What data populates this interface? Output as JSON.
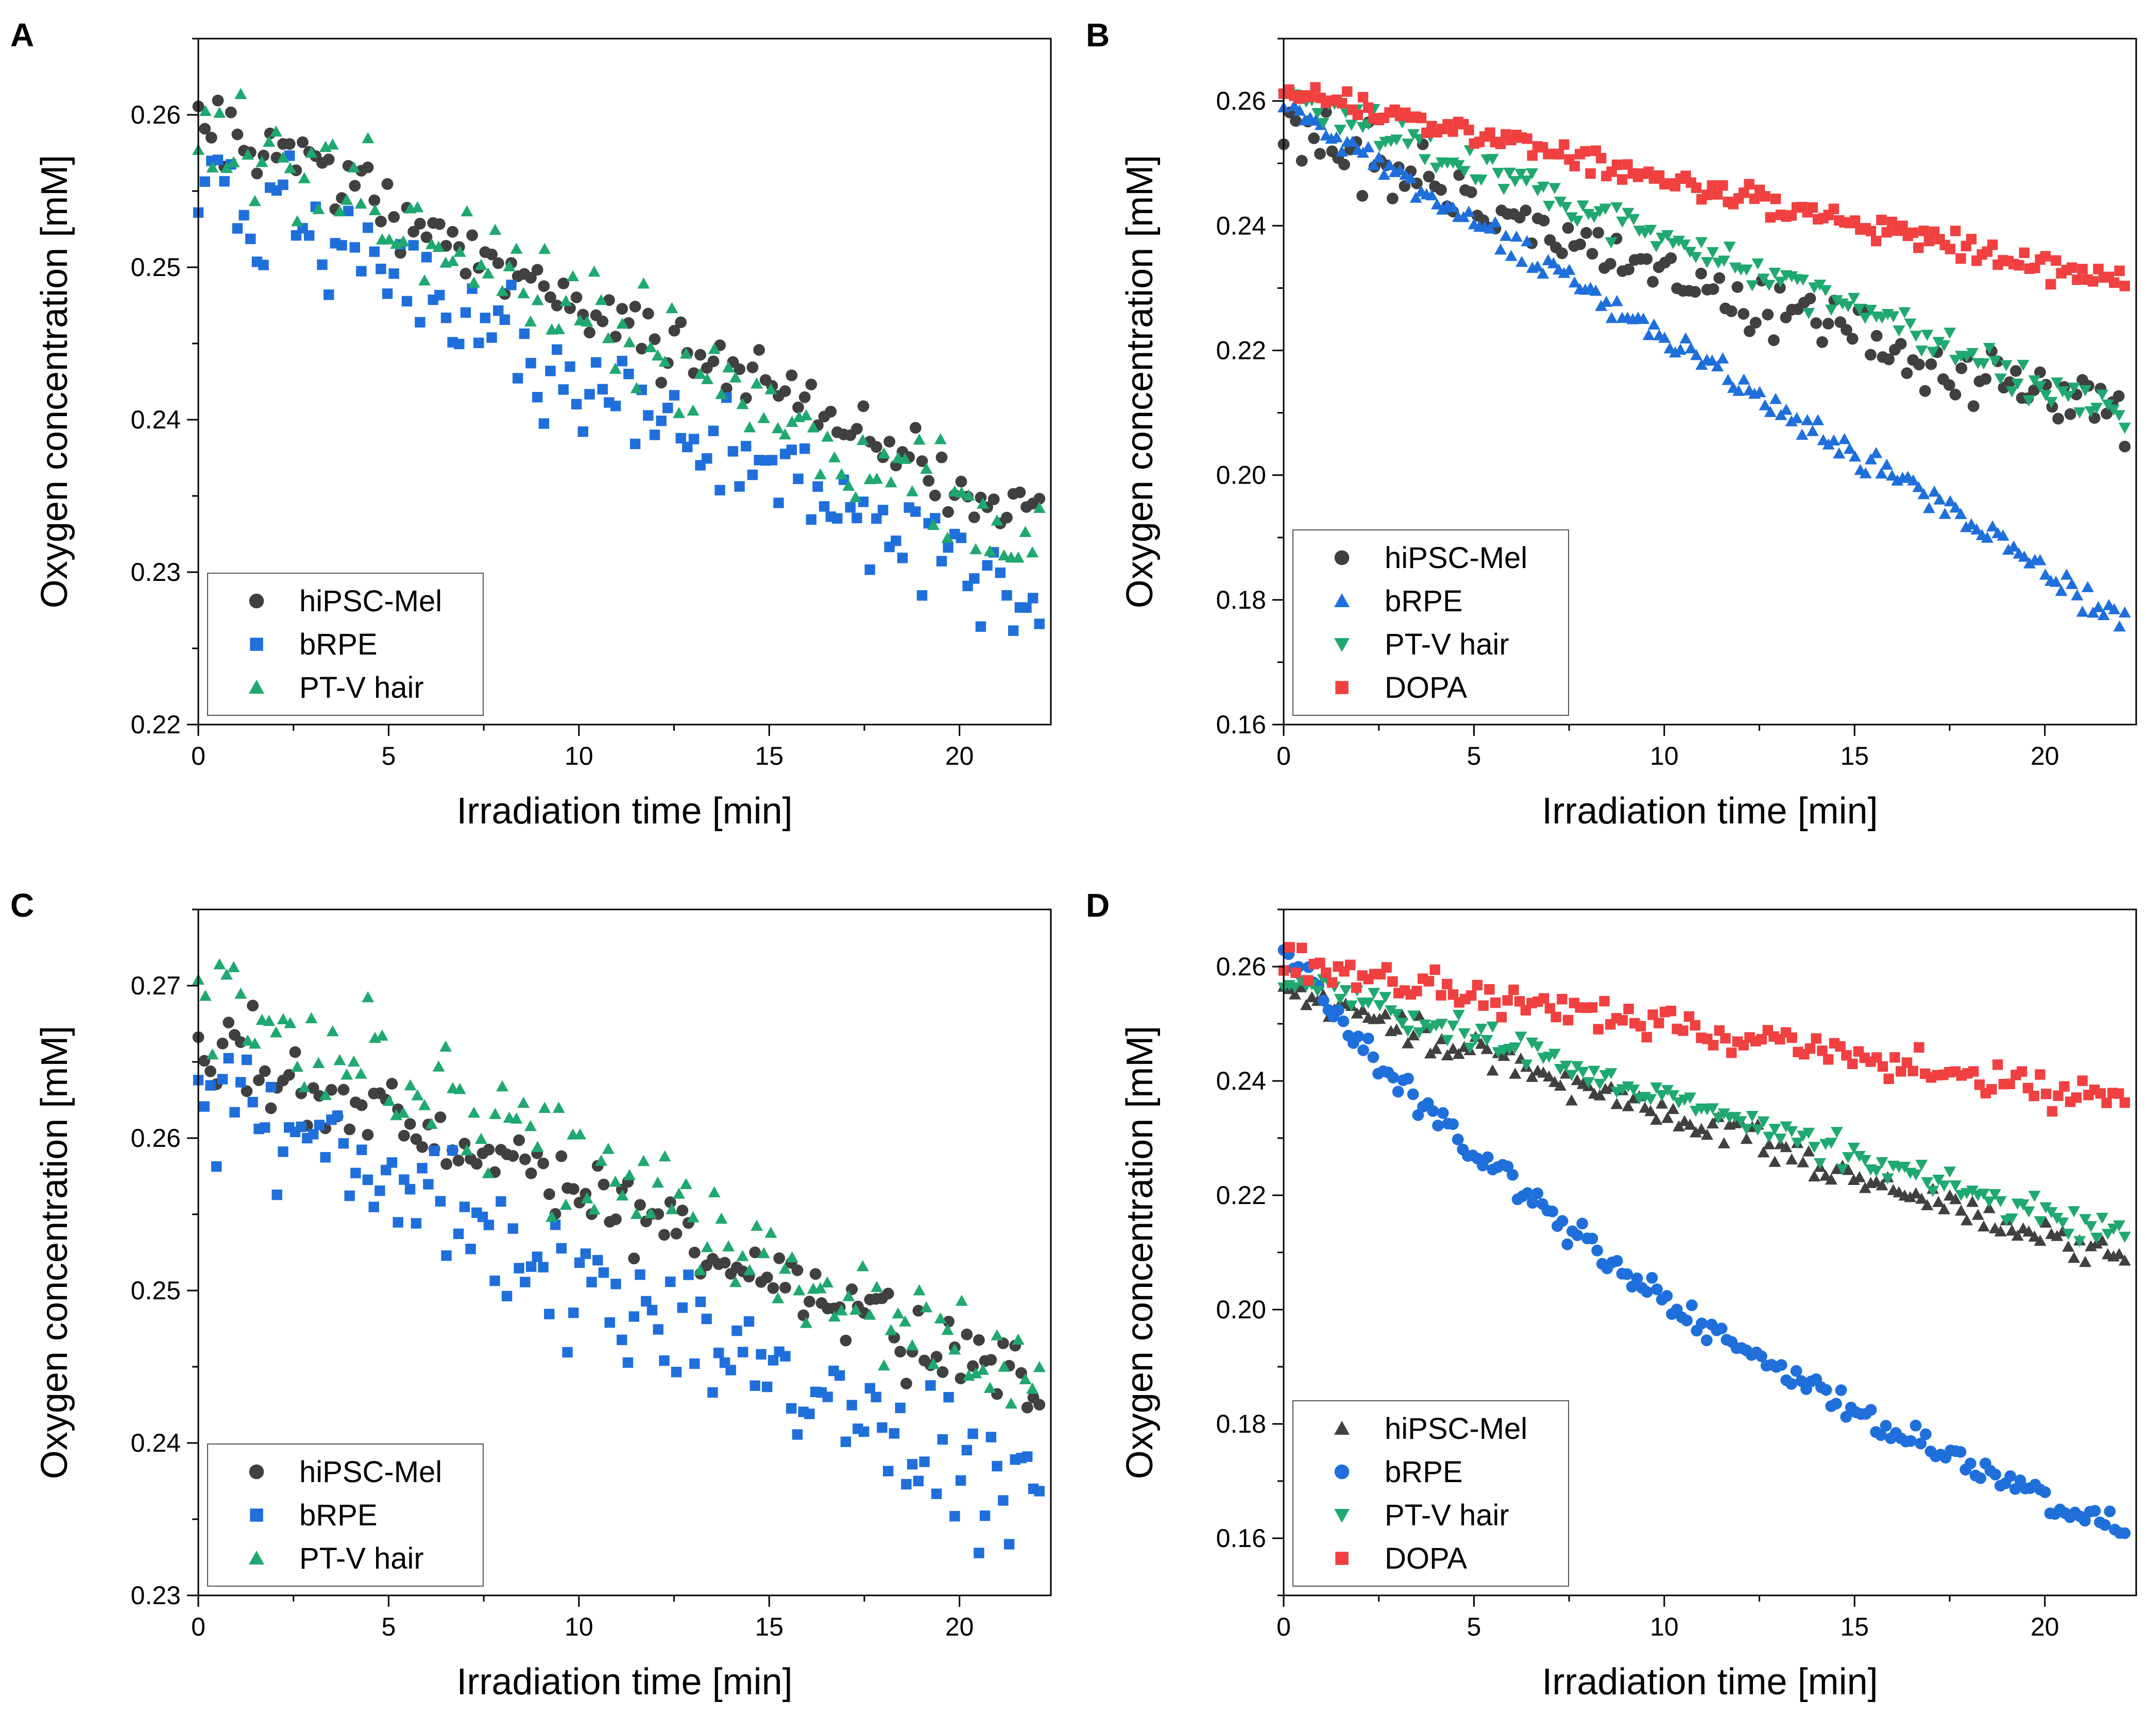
{
  "chart_data": [
    {
      "panel": "A",
      "type": "scatter",
      "xlabel": "Irradiation time [min]",
      "ylabel": "Oxygen concentration [mM]",
      "xlim": [
        0,
        22.4
      ],
      "ylim": [
        0.22,
        0.265
      ],
      "xticks": [
        0,
        5,
        10,
        15,
        20
      ],
      "xtick_labels": [
        "0",
        "5",
        "10",
        "15",
        "20"
      ],
      "yticks": [
        0.22,
        0.23,
        0.24,
        0.25,
        0.26
      ],
      "ytick_labels": [
        "0.22",
        "0.23",
        "0.24",
        "0.25",
        "0.26"
      ],
      "legend_position": "bottom-left",
      "series": [
        {
          "name": "hiPSC-Mel",
          "marker": "circle",
          "color": "#404040",
          "start": 0.2595,
          "end": 0.2335,
          "noise": 0.0012,
          "n": 130,
          "seed": 11
        },
        {
          "name": "bRPE",
          "marker": "square",
          "color": "#1f6fdb",
          "start": 0.2555,
          "end": 0.2275,
          "noise": 0.0018,
          "n": 130,
          "seed": 12
        },
        {
          "name": "PT-V hair",
          "marker": "triangle-up",
          "color": "#1fa870",
          "start": 0.2595,
          "end": 0.2315,
          "noise": 0.0018,
          "n": 120,
          "seed": 13
        }
      ]
    },
    {
      "panel": "B",
      "type": "scatter",
      "xlabel": "Irradiation time [min]",
      "ylabel": "Oxygen concentration [mM]",
      "xlim": [
        0,
        22.4
      ],
      "ylim": [
        0.16,
        0.27
      ],
      "xticks": [
        0,
        5,
        10,
        15,
        20
      ],
      "xtick_labels": [
        "0",
        "5",
        "10",
        "15",
        "20"
      ],
      "yticks": [
        0.16,
        0.18,
        0.2,
        0.22,
        0.24,
        0.26
      ],
      "ytick_labels": [
        "0.16",
        "0.18",
        "0.20",
        "0.22",
        "0.24",
        "0.26"
      ],
      "legend_position": "bottom-left",
      "series": [
        {
          "name": "hiPSC-Mel",
          "marker": "circle",
          "color": "#404040",
          "start": 0.2545,
          "end": 0.2075,
          "noise": 0.0028,
          "n": 140,
          "seed": 21
        },
        {
          "name": "bRPE",
          "marker": "triangle-up",
          "color": "#1f6fdb",
          "start": 0.2595,
          "end": 0.1765,
          "noise": 0.0012,
          "n": 160,
          "seed": 22
        },
        {
          "name": "PT-V hair",
          "marker": "triangle-down",
          "color": "#1fa870",
          "start": 0.2615,
          "end": 0.2095,
          "noise": 0.0015,
          "n": 150,
          "seed": 23
        },
        {
          "name": "DOPA",
          "marker": "square",
          "color": "#f04040",
          "start": 0.2615,
          "end": 0.2305,
          "noise": 0.001,
          "n": 160,
          "seed": 24
        }
      ]
    },
    {
      "panel": "C",
      "type": "scatter",
      "xlabel": "Irradiation time [min]",
      "ylabel": "Oxygen concentration [mM]",
      "xlim": [
        0,
        22.4
      ],
      "ylim": [
        0.23,
        0.275
      ],
      "xticks": [
        0,
        5,
        10,
        15,
        20
      ],
      "xtick_labels": [
        "0",
        "5",
        "10",
        "15",
        "20"
      ],
      "yticks": [
        0.23,
        0.24,
        0.25,
        0.26,
        0.27
      ],
      "ytick_labels": [
        "0.23",
        "0.24",
        "0.25",
        "0.26",
        "0.27"
      ],
      "legend_position": "bottom-left",
      "series": [
        {
          "name": "hiPSC-Mel",
          "marker": "circle",
          "color": "#404040",
          "start": 0.2665,
          "end": 0.2435,
          "noise": 0.0013,
          "n": 140,
          "seed": 31
        },
        {
          "name": "bRPE",
          "marker": "square",
          "color": "#1f6fdb",
          "start": 0.2635,
          "end": 0.2355,
          "noise": 0.002,
          "n": 140,
          "seed": 32
        },
        {
          "name": "PT-V hair",
          "marker": "triangle-up",
          "color": "#1fa870",
          "start": 0.27,
          "end": 0.244,
          "noise": 0.0018,
          "n": 120,
          "seed": 33
        }
      ]
    },
    {
      "panel": "D",
      "type": "scatter",
      "xlabel": "Irradiation time [min]",
      "ylabel": "Oxygen concentration [mM]",
      "xlim": [
        0,
        22.4
      ],
      "ylim": [
        0.15,
        0.27
      ],
      "xticks": [
        0,
        5,
        10,
        15,
        20
      ],
      "xtick_labels": [
        "0",
        "5",
        "10",
        "15",
        "20"
      ],
      "yticks": [
        0.16,
        0.18,
        0.2,
        0.22,
        0.24,
        0.26
      ],
      "ytick_labels": [
        "0.16",
        "0.18",
        "0.20",
        "0.22",
        "0.24",
        "0.26"
      ],
      "legend_position": "bottom-left",
      "series": [
        {
          "name": "hiPSC-Mel",
          "marker": "triangle-up",
          "color": "#404040",
          "start": 0.2555,
          "end": 0.2085,
          "noise": 0.0014,
          "n": 150,
          "seed": 41
        },
        {
          "name": "bRPE",
          "marker": "circle",
          "color": "#1f6fdb",
          "start": 0.262,
          "end": 0.162,
          "noise": 0.0012,
          "n": 170,
          "seed": 42,
          "curve": "exp"
        },
        {
          "name": "PT-V hair",
          "marker": "triangle-down",
          "color": "#1fa870",
          "start": 0.258,
          "end": 0.2125,
          "noise": 0.0014,
          "n": 150,
          "seed": 43
        },
        {
          "name": "DOPA",
          "marker": "square",
          "color": "#f04040",
          "start": 0.261,
          "end": 0.2365,
          "noise": 0.0015,
          "n": 140,
          "seed": 44
        }
      ]
    }
  ]
}
